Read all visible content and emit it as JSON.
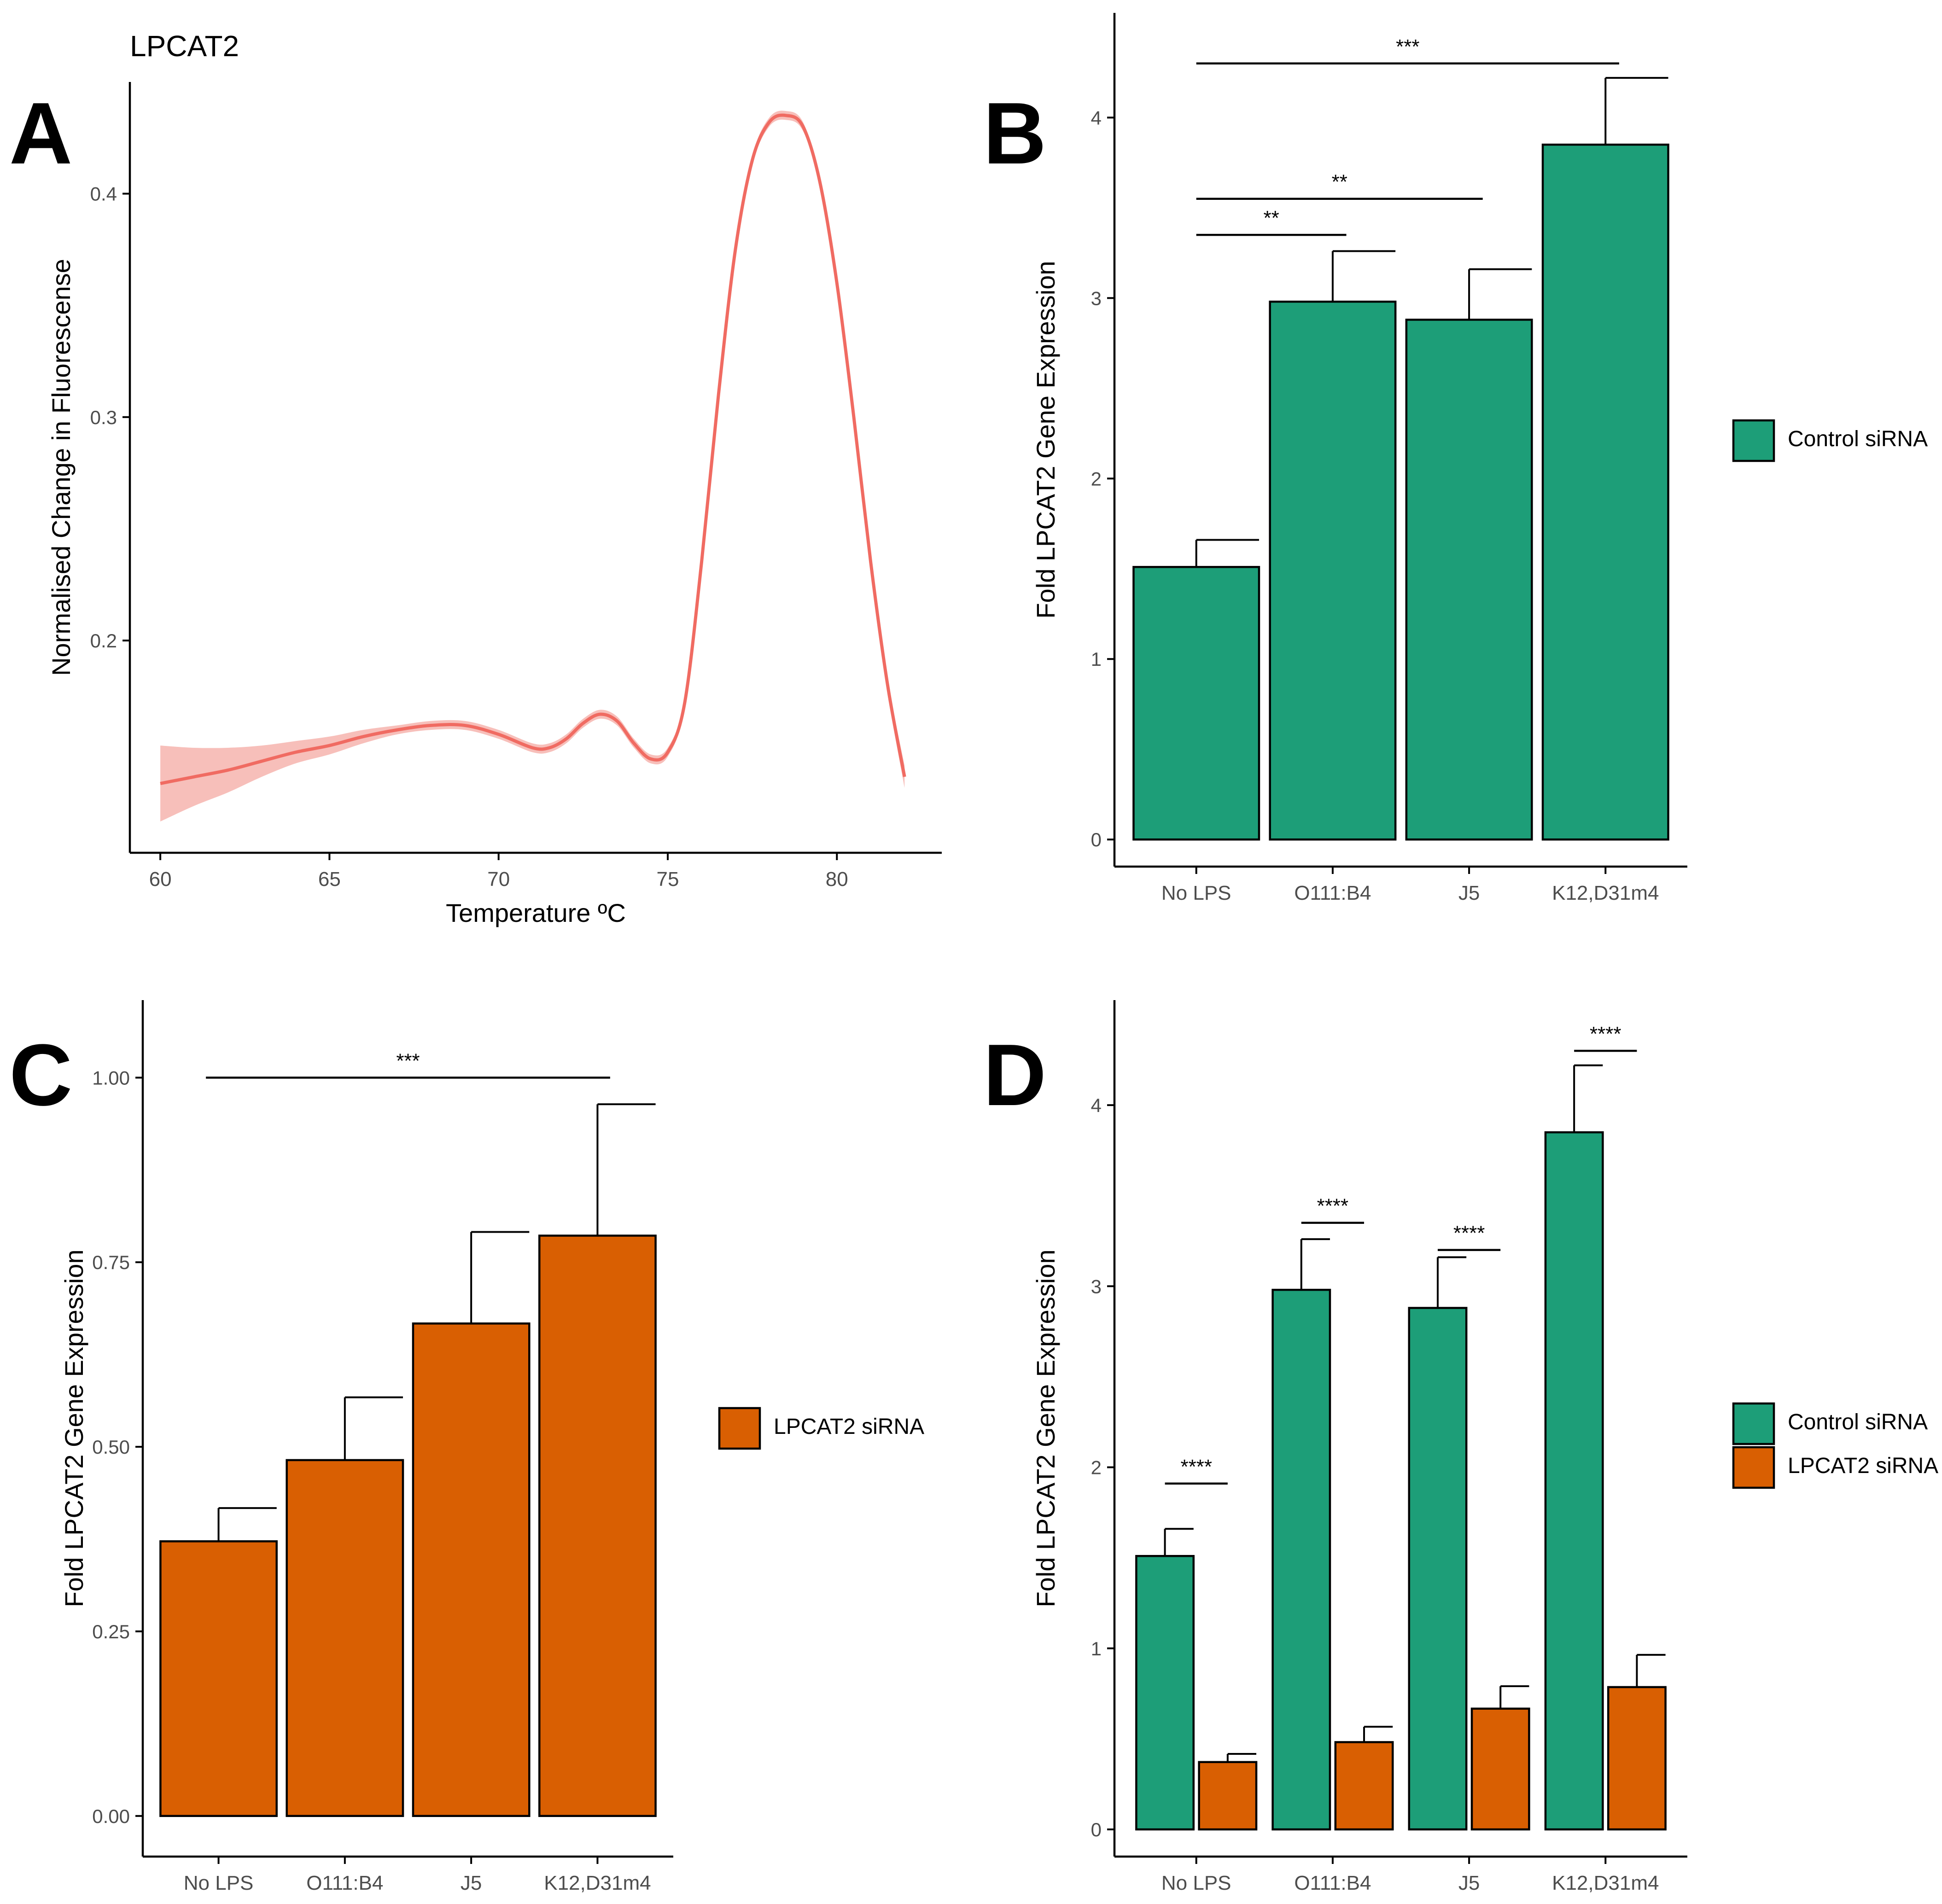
{
  "colors": {
    "control": "#1D9E78",
    "lpcat2": "#D95F02",
    "melt_line": "#F06B62",
    "melt_band": "#F6B4AE",
    "axis": "#000000",
    "tick_text": "#4D4D4D"
  },
  "chart_data": [
    {
      "panel_label": "A",
      "type": "line",
      "title": "LPCAT2",
      "xlabel": "Temperature ºC",
      "ylabel": "Normalised Change in Fluorescense",
      "xlim": [
        59.1,
        83.1
      ],
      "ylim": [
        0.105,
        0.45
      ],
      "xticks": [
        60,
        65,
        70,
        75,
        80
      ],
      "yticks": [
        0.2,
        0.3,
        0.4
      ],
      "ytick_labels": [
        "0.2",
        "0.3",
        "0.4"
      ],
      "series": [
        {
          "name": "melt curve",
          "x": [
            60.0,
            61.0,
            62.0,
            63.0,
            64.0,
            65.0,
            66.0,
            67.0,
            68.0,
            69.0,
            70.0,
            71.0,
            71.5,
            72.0,
            72.5,
            73.0,
            73.5,
            74.0,
            74.5,
            75.0,
            75.5,
            76.0,
            76.5,
            77.0,
            77.5,
            78.0,
            78.5,
            79.0,
            79.5,
            80.0,
            80.5,
            81.0,
            81.5,
            82.0
          ],
          "y": [
            0.136,
            0.139,
            0.142,
            0.146,
            0.15,
            0.153,
            0.157,
            0.16,
            0.162,
            0.162,
            0.158,
            0.152,
            0.152,
            0.156,
            0.163,
            0.167,
            0.164,
            0.154,
            0.147,
            0.15,
            0.172,
            0.235,
            0.31,
            0.375,
            0.415,
            0.432,
            0.435,
            0.43,
            0.405,
            0.36,
            0.3,
            0.235,
            0.18,
            0.139
          ],
          "ci_halfwidth": [
            0.017,
            0.013,
            0.01,
            0.007,
            0.005,
            0.004,
            0.003,
            0.002,
            0.002,
            0.002,
            0.002,
            0.002,
            0.002,
            0.002,
            0.002,
            0.002,
            0.002,
            0.002,
            0.002,
            0.002,
            0.002,
            0.002,
            0.002,
            0.002,
            0.002,
            0.002,
            0.002,
            0.002,
            0.002,
            0.002,
            0.002,
            0.002,
            0.003,
            0.005
          ]
        }
      ]
    },
    {
      "panel_label": "B",
      "type": "bar",
      "ylabel": "Fold LPCAT2 Gene Expression",
      "categories": [
        "No LPS",
        "O111:B4",
        "J5",
        "K12,D31m4"
      ],
      "ylim": [
        -0.15,
        4.58
      ],
      "yticks": [
        0,
        1,
        2,
        3,
        4
      ],
      "ytick_labels": [
        "0",
        "1",
        "2",
        "3",
        "4"
      ],
      "series": [
        {
          "name": "Control siRNA",
          "color_key": "control",
          "values": [
            1.51,
            2.98,
            2.88,
            3.85
          ],
          "errors": [
            0.15,
            0.28,
            0.28,
            0.37
          ]
        }
      ],
      "legend": {
        "position": "right",
        "entries": [
          "Control siRNA"
        ]
      },
      "significance": [
        {
          "from": 0,
          "to": 3,
          "y": 4.3,
          "label": "***"
        },
        {
          "from": 0,
          "to": 2,
          "y": 3.55,
          "label": "**"
        },
        {
          "from": 0,
          "to": 1,
          "y": 3.35,
          "label": "**"
        }
      ]
    },
    {
      "panel_label": "C",
      "type": "bar",
      "ylabel": "Fold LPCAT2 Gene Expression",
      "categories": [
        "No LPS",
        "O111:B4",
        "J5",
        "K12,D31m4"
      ],
      "ylim": [
        -0.055,
        1.105
      ],
      "yticks": [
        0,
        0.25,
        0.5,
        0.75,
        1.0
      ],
      "ytick_labels": [
        "0.00",
        "0.25",
        "0.50",
        "0.75",
        "1.00"
      ],
      "series": [
        {
          "name": "LPCAT2 siRNA",
          "color_key": "lpcat2",
          "values": [
            0.372,
            0.482,
            0.667,
            0.786
          ],
          "errors": [
            0.045,
            0.085,
            0.124,
            0.178
          ]
        }
      ],
      "legend": {
        "position": "right",
        "entries": [
          "LPCAT2 siRNA"
        ]
      },
      "significance": [
        {
          "from": 0,
          "to": 3,
          "y": 1.0,
          "label": "***"
        }
      ]
    },
    {
      "panel_label": "D",
      "type": "bar",
      "ylabel": "Fold LPCAT2 Gene Expression",
      "categories": [
        "No LPS",
        "O111:B4",
        "J5",
        "K12,D31m4"
      ],
      "ylim": [
        -0.15,
        4.58
      ],
      "yticks": [
        0,
        1,
        2,
        3,
        4
      ],
      "ytick_labels": [
        "0",
        "1",
        "2",
        "3",
        "4"
      ],
      "series": [
        {
          "name": "Control siRNA",
          "color_key": "control",
          "values": [
            1.51,
            2.98,
            2.88,
            3.85
          ],
          "errors": [
            0.15,
            0.28,
            0.28,
            0.37
          ]
        },
        {
          "name": "LPCAT2 siRNA",
          "color_key": "lpcat2",
          "values": [
            0.372,
            0.482,
            0.667,
            0.786
          ],
          "errors": [
            0.045,
            0.085,
            0.124,
            0.178
          ]
        }
      ],
      "legend": {
        "position": "right",
        "entries": [
          "Control siRNA",
          "LPCAT2 siRNA"
        ]
      },
      "significance": [
        {
          "category": 0,
          "y": 1.91,
          "label": "****"
        },
        {
          "category": 1,
          "y": 3.35,
          "label": "****"
        },
        {
          "category": 2,
          "y": 3.2,
          "label": "****"
        },
        {
          "category": 3,
          "y": 4.3,
          "label": "****"
        }
      ]
    }
  ]
}
